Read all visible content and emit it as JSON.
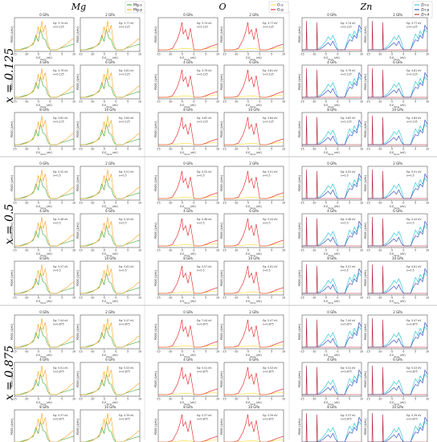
{
  "elements": [
    "Mg",
    "O",
    "Zn"
  ],
  "row_labels": [
    "x = 0.125",
    "x = 0.5",
    "x = 0.875"
  ],
  "legends": {
    "Mg": [
      {
        "name": "Mg-s",
        "color": "#2ca02c"
      },
      {
        "name": "Mg-p",
        "color": "#ff9f1c"
      }
    ],
    "O": [
      {
        "name": "O-s",
        "color": "#ffd92f"
      },
      {
        "name": "O-p",
        "color": "#e41a1c"
      }
    ],
    "Zn": [
      {
        "name": "Zn-s",
        "color": "#17becf"
      },
      {
        "name": "Zn-p",
        "color": "#1f3fbf"
      },
      {
        "name": "Zn-d",
        "color": "#b2182b"
      }
    ]
  },
  "pressures": [
    "0 GPa",
    "2 GPa",
    "4 GPa",
    "6 GPa",
    "8 GPa",
    "10 GPa"
  ],
  "ylabel": "PDOS (1/eV)",
  "xlabel": "E-E",
  "xlabel_sub": "Fermi",
  "xlabel_unit": " (eV)",
  "xticks": [
    "-15",
    "-10",
    "-5",
    "0",
    "5",
    "10"
  ],
  "chart_data": {
    "type": "line",
    "description_source": "Grid of projected density of states panels",
    "xlim": [
      -15,
      10
    ],
    "rows": [
      {
        "label": "x = 0.125",
        "x_fraction": 0.125,
        "panels": [
          {
            "pressure": "0 GPa",
            "Eg": "3.74 eV",
            "x": "0.125"
          },
          {
            "pressure": "2 GPa",
            "Eg": "3.77 eV",
            "x": "0.125"
          },
          {
            "pressure": "4 GPa",
            "Eg": "3.79 eV",
            "x": "0.125"
          },
          {
            "pressure": "6 GPa",
            "Eg": "3.81 eV",
            "x": "0.125"
          },
          {
            "pressure": "8 GPa",
            "Eg": "3.82 eV",
            "x": "0.125"
          },
          {
            "pressure": "10 GPa",
            "Eg": "3.84 eV",
            "x": "0.125"
          }
        ]
      },
      {
        "label": "x = 0.5",
        "x_fraction": 0.5,
        "panels": [
          {
            "pressure": "0 GPa",
            "Eg": "5.52 eV",
            "x": "0.5"
          },
          {
            "pressure": "2 GPa",
            "Eg": "5.51 eV",
            "x": "0.5"
          },
          {
            "pressure": "4 GPa",
            "Eg": "5.48 eV",
            "x": "0.5"
          },
          {
            "pressure": "6 GPa",
            "Eg": "5.44 eV",
            "x": "0.5"
          },
          {
            "pressure": "8 GPa",
            "Eg": "5.57 eV",
            "x": "0.5"
          },
          {
            "pressure": "10 GPa",
            "Eg": "5.61 eV",
            "x": "0.5"
          }
        ]
      },
      {
        "label": "x = 0.875",
        "x_fraction": 0.875,
        "panels": [
          {
            "pressure": "0 GPa",
            "Eg": "7.44 eV",
            "x": "0.875"
          },
          {
            "pressure": "2 GPa",
            "Eg": "5.47 eV",
            "x": "0.875"
          },
          {
            "pressure": "4 GPa",
            "Eg": "5.51 eV",
            "x": "0.875"
          },
          {
            "pressure": "6 GPa",
            "Eg": "5.53 eV",
            "x": "0.875"
          },
          {
            "pressure": "8 GPa",
            "Eg": "5.37 eV",
            "x": "0.875"
          },
          {
            "pressure": "10 GPa",
            "Eg": "5.39 eV",
            "x": "0.875"
          }
        ]
      }
    ],
    "curves": {
      "Mg-s": [
        [
          -15,
          0
        ],
        [
          -13,
          0
        ],
        [
          -11,
          0.05
        ],
        [
          -9,
          0.1
        ],
        [
          -7,
          0.2
        ],
        [
          -6,
          0.5
        ],
        [
          -5,
          0.3
        ],
        [
          -4,
          0.7
        ],
        [
          -3,
          0.4
        ],
        [
          -2,
          0.35
        ],
        [
          -1,
          0.1
        ],
        [
          0,
          0
        ],
        [
          3,
          0
        ],
        [
          4,
          0.05
        ],
        [
          6,
          0.1
        ],
        [
          8,
          0.15
        ],
        [
          10,
          0.2
        ]
      ],
      "Mg-p": [
        [
          -15,
          0
        ],
        [
          -12,
          0
        ],
        [
          -10,
          0.05
        ],
        [
          -8,
          0.15
        ],
        [
          -6,
          0.35
        ],
        [
          -5,
          0.8
        ],
        [
          -4.5,
          0.5
        ],
        [
          -3.5,
          1.0
        ],
        [
          -3,
          0.6
        ],
        [
          -2,
          0.85
        ],
        [
          -1.2,
          0.3
        ],
        [
          0,
          0
        ],
        [
          3,
          0
        ],
        [
          5,
          0.1
        ],
        [
          7,
          0.2
        ],
        [
          9,
          0.35
        ],
        [
          10,
          0.4
        ]
      ],
      "O-s": [
        [
          -15,
          0
        ],
        [
          -10,
          0
        ],
        [
          -7,
          0.02
        ],
        [
          -4,
          0.05
        ],
        [
          -1,
          0.03
        ],
        [
          0,
          0
        ],
        [
          3,
          0
        ],
        [
          6,
          0.05
        ],
        [
          10,
          0.08
        ]
      ],
      "O-p": [
        [
          -15,
          0
        ],
        [
          -11,
          0
        ],
        [
          -9,
          0.05
        ],
        [
          -7,
          0.35
        ],
        [
          -6,
          0.6
        ],
        [
          -5,
          0.95
        ],
        [
          -4.5,
          0.55
        ],
        [
          -3.5,
          0.7
        ],
        [
          -2.5,
          0.35
        ],
        [
          -1.5,
          0.75
        ],
        [
          -1,
          0.5
        ],
        [
          -0.3,
          0.15
        ],
        [
          0,
          0
        ],
        [
          3,
          0
        ],
        [
          5,
          0.05
        ],
        [
          7,
          0.12
        ],
        [
          10,
          0.2
        ]
      ],
      "Zn-s": [
        [
          -15,
          0
        ],
        [
          -9,
          0
        ],
        [
          -7,
          0.1
        ],
        [
          -5,
          0.3
        ],
        [
          -4,
          0.45
        ],
        [
          -3,
          0.35
        ],
        [
          -2,
          0.5
        ],
        [
          -1,
          0.3
        ],
        [
          0,
          0
        ],
        [
          3,
          0
        ],
        [
          4,
          0.3
        ],
        [
          5,
          0.55
        ],
        [
          6,
          0.4
        ],
        [
          7,
          0.65
        ],
        [
          8,
          0.5
        ],
        [
          9,
          0.7
        ],
        [
          10,
          0.6
        ]
      ],
      "Zn-p": [
        [
          -15,
          0
        ],
        [
          -8,
          0
        ],
        [
          -6,
          0.1
        ],
        [
          -4,
          0.25
        ],
        [
          -3,
          0.15
        ],
        [
          -2,
          0.3
        ],
        [
          -1,
          0.1
        ],
        [
          0,
          0
        ],
        [
          3,
          0
        ],
        [
          4,
          0.2
        ],
        [
          5,
          0.35
        ],
        [
          6,
          0.3
        ],
        [
          7,
          0.5
        ],
        [
          8,
          0.4
        ],
        [
          9,
          0.85
        ],
        [
          10,
          0.7
        ]
      ],
      "Zn-d": [
        [
          -15,
          0
        ],
        [
          -13.3,
          0
        ],
        [
          -13.1,
          1.0
        ],
        [
          -12.9,
          0
        ],
        [
          -8.9,
          0
        ],
        [
          -8.7,
          0.95
        ],
        [
          -8.5,
          0
        ],
        [
          0,
          0
        ],
        [
          10,
          0
        ]
      ]
    }
  }
}
